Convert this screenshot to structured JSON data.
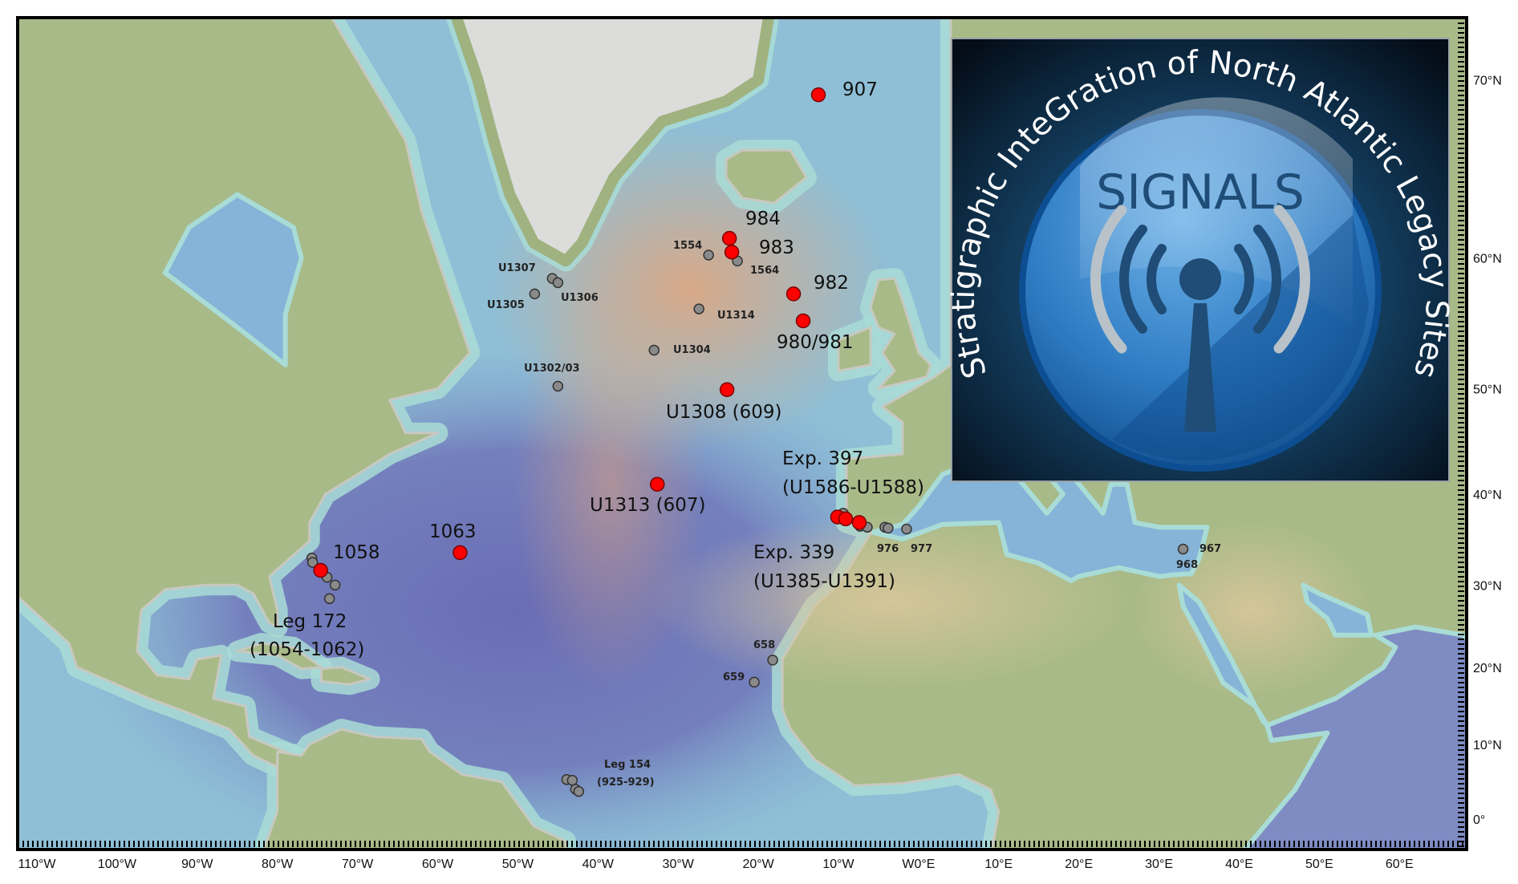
{
  "map": {
    "colors": {
      "primary_site": "#ff0000",
      "legacy_site": "#8a8a8a",
      "frame": "#000000"
    },
    "lon_ticks": [
      {
        "value": -110,
        "label": "110°W"
      },
      {
        "value": -100,
        "label": "100°W"
      },
      {
        "value": -90,
        "label": "90°W"
      },
      {
        "value": -80,
        "label": "80°W"
      },
      {
        "value": -70,
        "label": "70°W"
      },
      {
        "value": -60,
        "label": "60°W"
      },
      {
        "value": -50,
        "label": "50°W"
      },
      {
        "value": -40,
        "label": "40°W"
      },
      {
        "value": -30,
        "label": "30°W"
      },
      {
        "value": -20,
        "label": "20°W"
      },
      {
        "value": -10,
        "label": "10°W"
      },
      {
        "value": 0,
        "label": "W0°E"
      },
      {
        "value": 10,
        "label": "10°E"
      },
      {
        "value": 20,
        "label": "20°E"
      },
      {
        "value": 30,
        "label": "30°E"
      },
      {
        "value": 40,
        "label": "40°E"
      },
      {
        "value": 50,
        "label": "50°E"
      },
      {
        "value": 60,
        "label": "60°E"
      }
    ],
    "lat_ticks": [
      {
        "value": 0,
        "label": "0°"
      },
      {
        "value": 10,
        "label": "10°N"
      },
      {
        "value": 20,
        "label": "20°N"
      },
      {
        "value": 30,
        "label": "30°N"
      },
      {
        "value": 40,
        "label": "40°N"
      },
      {
        "value": 50,
        "label": "50°N"
      },
      {
        "value": 60,
        "label": "60°N"
      },
      {
        "value": 70,
        "label": "70°N"
      }
    ],
    "primary_sites": [
      {
        "lon": -12.5,
        "lat": 69.3
      },
      {
        "lon": -23.6,
        "lat": 61.3
      },
      {
        "lon": -23.3,
        "lat": 60.4
      },
      {
        "lon": -15.6,
        "lat": 57.5
      },
      {
        "lon": -14.4,
        "lat": 55.5
      },
      {
        "lon": -23.9,
        "lat": 49.9
      },
      {
        "lon": -32.6,
        "lat": 41.0
      },
      {
        "lon": -57.2,
        "lat": 33.7
      },
      {
        "lon": -74.6,
        "lat": 31.7
      },
      {
        "lon": -10.1,
        "lat": 37.6
      },
      {
        "lon": -9.1,
        "lat": 37.4
      },
      {
        "lon": -7.4,
        "lat": 37.0
      }
    ],
    "legacy_sites": [
      {
        "lon": -26.2,
        "lat": 60.2
      },
      {
        "lon": -22.6,
        "lat": 59.8
      },
      {
        "lon": -45.7,
        "lat": 58.6
      },
      {
        "lon": -45.0,
        "lat": 58.3
      },
      {
        "lon": -47.9,
        "lat": 57.5
      },
      {
        "lon": -27.4,
        "lat": 56.4
      },
      {
        "lon": -33.0,
        "lat": 53.2
      },
      {
        "lon": -45.0,
        "lat": 50.2
      },
      {
        "lon": -75.7,
        "lat": 33.1
      },
      {
        "lon": -75.6,
        "lat": 32.6
      },
      {
        "lon": -73.8,
        "lat": 30.9
      },
      {
        "lon": -72.8,
        "lat": 30.0
      },
      {
        "lon": -73.5,
        "lat": 28.4
      },
      {
        "lon": -9.4,
        "lat": 38.0
      },
      {
        "lon": -7.3,
        "lat": 36.6
      },
      {
        "lon": -6.4,
        "lat": 36.5
      },
      {
        "lon": -4.2,
        "lat": 36.5
      },
      {
        "lon": -3.8,
        "lat": 36.4
      },
      {
        "lon": -1.5,
        "lat": 36.3
      },
      {
        "lon": 33.0,
        "lat": 34.1
      },
      {
        "lon": -18.2,
        "lat": 20.9
      },
      {
        "lon": -20.5,
        "lat": 18.1
      },
      {
        "lon": -43.9,
        "lat": 5.3
      },
      {
        "lon": -43.2,
        "lat": 5.2
      },
      {
        "lon": -42.8,
        "lat": 4.0
      },
      {
        "lon": -42.4,
        "lat": 3.7
      }
    ],
    "primary_labels": {
      "s907": "907",
      "s984": "984",
      "s983": "983",
      "s982": "982",
      "s980": "980/981",
      "u1308": "U1308 (609)",
      "u1313": "U1313 (607)",
      "exp397": "Exp. 397",
      "exp397_range": "(U1586-U1588)",
      "s1063": "1063",
      "s1058": "1058",
      "exp339": "Exp. 339",
      "exp339_range": "(U1385-U1391)",
      "leg172": "Leg 172",
      "leg172_range": "(1054-1062)"
    },
    "legacy_labels": {
      "s1554": "1554",
      "s1564": "1564",
      "u1307": "U1307",
      "u1306": "U1306",
      "u1305": "U1305",
      "u1314": "U1314",
      "u1304": "U1304",
      "u1302": "U1302/03",
      "s976": "976",
      "s977": "977",
      "s967": "967",
      "s968": "968",
      "s658": "658",
      "s659": "659",
      "leg154": "Leg 154",
      "leg154_range": "(925-929)"
    }
  },
  "logo": {
    "title_arc": "Stratigraphic InteGration of North Atlantic Legacy Sites",
    "name": "SIGNALS",
    "icon": "antenna-broadcast-icon",
    "colors": {
      "background": "#07182a",
      "disc": "#2f7cc4",
      "accent": "#1f4d77",
      "waves": "#b8c2c8"
    }
  }
}
